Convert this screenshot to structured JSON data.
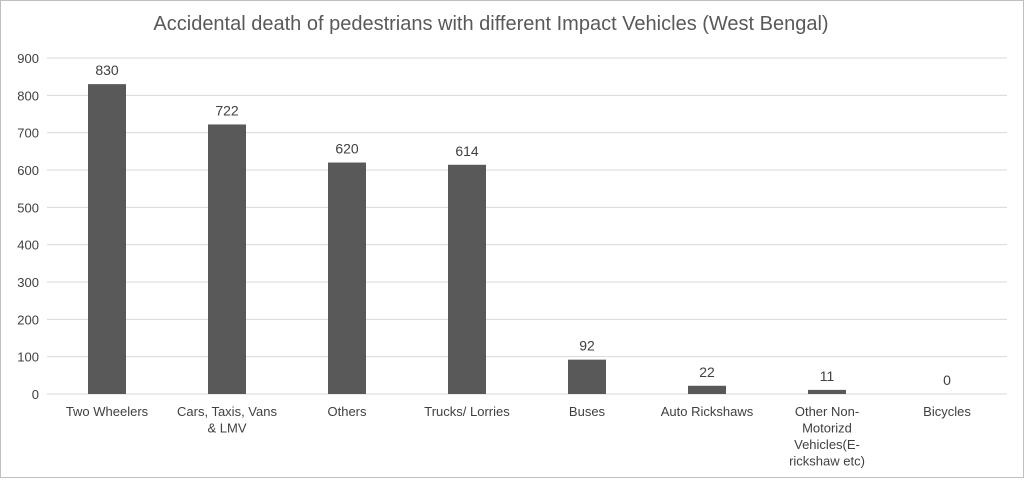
{
  "chart_data": {
    "type": "bar",
    "title": "Accidental death of pedestrians with different Impact Vehicles (West Bengal)",
    "xlabel": "",
    "ylabel": "",
    "categories": [
      [
        "Two Wheelers"
      ],
      [
        "Cars, Taxis, Vans",
        "& LMV"
      ],
      [
        "Others"
      ],
      [
        "Trucks/ Lorries"
      ],
      [
        "Buses"
      ],
      [
        "Auto Rickshaws"
      ],
      [
        "Other Non-",
        "Motorizd",
        "Vehicles(E-",
        "rickshaw etc)"
      ],
      [
        "Bicycles"
      ]
    ],
    "values": [
      830,
      722,
      620,
      614,
      92,
      22,
      11,
      0
    ],
    "ylim": [
      0,
      900
    ],
    "yticks": [
      0,
      100,
      200,
      300,
      400,
      500,
      600,
      700,
      800,
      900
    ],
    "grid": true,
    "legend": "none",
    "colors": {
      "bar": "#595959",
      "grid": "#d9d9d9",
      "text": "#404040",
      "title": "#595959"
    }
  }
}
